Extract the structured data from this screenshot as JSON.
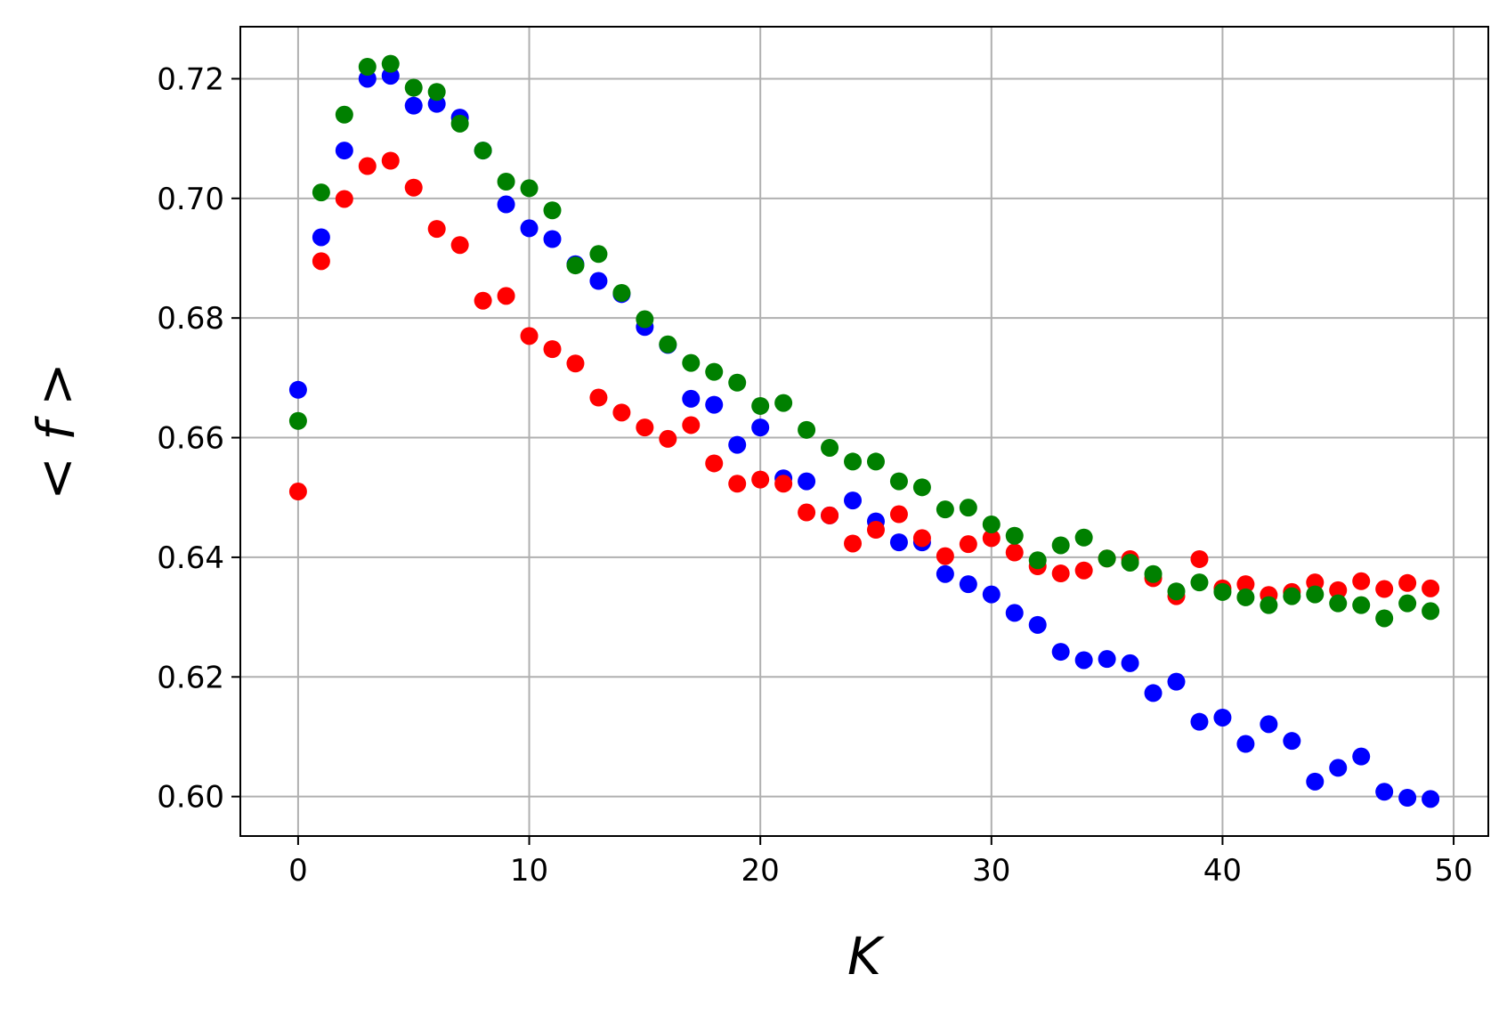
{
  "chart_data": {
    "type": "scatter",
    "title": "",
    "xlabel": "K",
    "ylabel": "< f >",
    "xlim": [
      -2.5,
      51.5
    ],
    "ylim": [
      0.5934,
      0.7287
    ],
    "xticks": [
      0,
      10,
      20,
      30,
      40,
      50
    ],
    "xtick_labels": [
      "0",
      "10",
      "20",
      "30",
      "40",
      "50"
    ],
    "yticks": [
      0.6,
      0.62,
      0.64,
      0.66,
      0.68,
      0.7,
      0.72
    ],
    "ytick_labels": [
      "0.60",
      "0.62",
      "0.64",
      "0.66",
      "0.68",
      "0.70",
      "0.72"
    ],
    "grid": true,
    "legend": "none",
    "x": [
      0,
      1,
      2,
      3,
      4,
      5,
      6,
      7,
      8,
      9,
      10,
      11,
      12,
      13,
      14,
      15,
      16,
      17,
      18,
      19,
      20,
      21,
      22,
      23,
      24,
      25,
      26,
      27,
      28,
      29,
      30,
      31,
      32,
      33,
      34,
      35,
      36,
      37,
      38,
      39,
      40,
      41,
      42,
      43,
      44,
      45,
      46,
      47,
      48,
      49
    ],
    "series": [
      {
        "color": "#0000ff",
        "values": [
          0.668,
          0.6935,
          0.708,
          0.72,
          0.7205,
          0.7155,
          0.7158,
          0.7135,
          0.708,
          0.699,
          0.695,
          0.6932,
          0.689,
          0.6862,
          0.684,
          0.6785,
          0.6755,
          0.6665,
          0.6655,
          0.6588,
          0.6617,
          0.6532,
          0.6527,
          0.647,
          0.6495,
          0.646,
          0.6425,
          0.6425,
          0.6372,
          0.6355,
          0.6338,
          0.6307,
          0.6287,
          0.6242,
          0.6228,
          0.623,
          0.6223,
          0.6173,
          0.6192,
          0.6125,
          0.6132,
          0.6088,
          0.6121,
          0.6093,
          0.6025,
          0.6048,
          0.6067,
          0.6008,
          0.5998,
          0.5996
        ]
      },
      {
        "color": "#ff0000",
        "values": [
          0.651,
          0.6895,
          0.6999,
          0.7054,
          0.7063,
          0.7018,
          0.6949,
          0.6922,
          0.6829,
          0.6837,
          0.677,
          0.6748,
          0.6724,
          0.6667,
          0.6642,
          0.6617,
          0.6598,
          0.6621,
          0.6557,
          0.6523,
          0.653,
          0.6523,
          0.6475,
          0.647,
          0.6423,
          0.6446,
          0.6472,
          0.6432,
          0.6402,
          0.6422,
          0.6432,
          0.6408,
          0.6385,
          0.6373,
          0.6378,
          0.6398,
          0.6397,
          0.6365,
          0.6335,
          0.6397,
          0.6348,
          0.6355,
          0.6337,
          0.6342,
          0.6358,
          0.6345,
          0.636,
          0.6347,
          0.6357,
          0.6348
        ]
      },
      {
        "color": "#008000",
        "values": [
          0.6628,
          0.701,
          0.714,
          0.722,
          0.7225,
          0.7185,
          0.7178,
          0.7125,
          0.708,
          0.7028,
          0.7017,
          0.698,
          0.6888,
          0.6907,
          0.6842,
          0.6798,
          0.6756,
          0.6725,
          0.671,
          0.6692,
          0.6653,
          0.6658,
          0.6613,
          0.6583,
          0.656,
          0.656,
          0.6527,
          0.6517,
          0.648,
          0.6483,
          0.6455,
          0.6436,
          0.6395,
          0.642,
          0.6433,
          0.6398,
          0.6391,
          0.6372,
          0.6343,
          0.6358,
          0.6342,
          0.6333,
          0.632,
          0.6335,
          0.6338,
          0.6323,
          0.632,
          0.6298,
          0.6323,
          0.631
        ]
      }
    ]
  }
}
